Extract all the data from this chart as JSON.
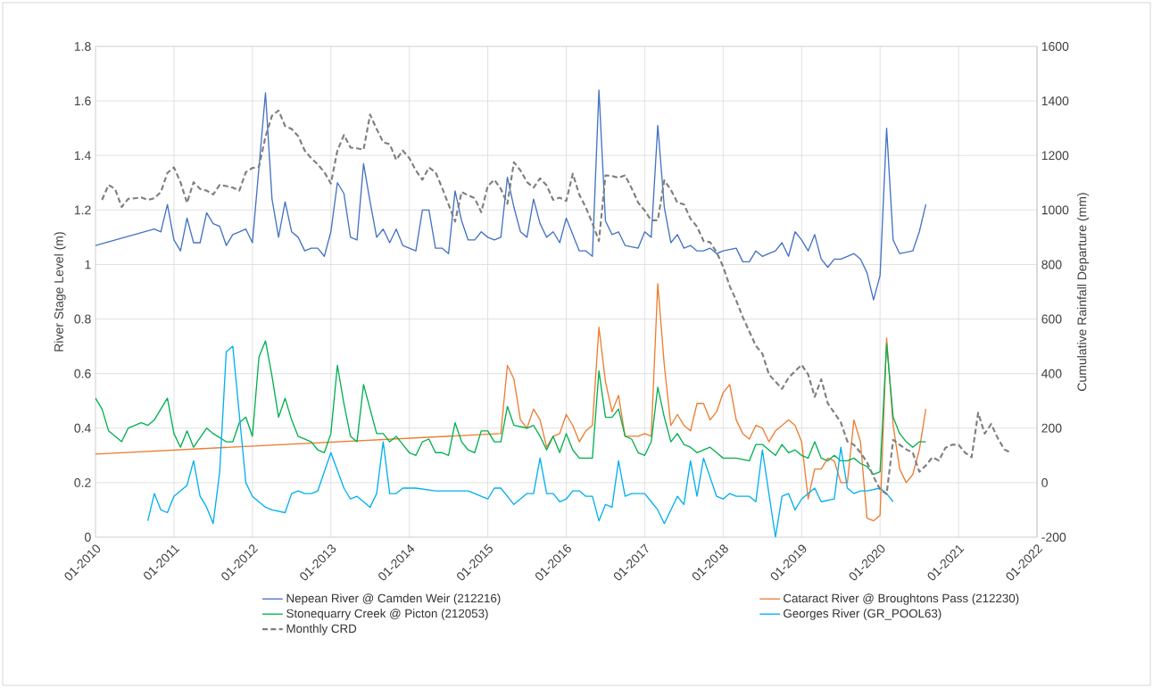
{
  "chart_data": {
    "type": "line",
    "ylabel": "River Stage Level (m)",
    "y2label": "Cumulative Rainfall Departure (mm)",
    "xlim": [
      "2010-01",
      "2022-01"
    ],
    "xticks": [
      {
        "value": "2010-01",
        "label": "01-2010"
      },
      {
        "value": "2011-01",
        "label": "01-2011"
      },
      {
        "value": "2012-01",
        "label": "01-2012"
      },
      {
        "value": "2013-01",
        "label": "01-2013"
      },
      {
        "value": "2014-01",
        "label": "01-2014"
      },
      {
        "value": "2015-01",
        "label": "01-2015"
      },
      {
        "value": "2016-01",
        "label": "01-2016"
      },
      {
        "value": "2017-01",
        "label": "01-2017"
      },
      {
        "value": "2018-01",
        "label": "01-2018"
      },
      {
        "value": "2019-01",
        "label": "01-2019"
      },
      {
        "value": "2020-01",
        "label": "01-2020"
      },
      {
        "value": "2021-01",
        "label": "01-2021"
      },
      {
        "value": "2022-01",
        "label": "01-2022"
      }
    ],
    "ylim": [
      0,
      1.8
    ],
    "yticks": [
      0,
      0.2,
      0.4,
      0.6,
      0.8,
      1,
      1.2,
      1.4,
      1.6,
      1.8
    ],
    "y2lim": [
      -200,
      1600
    ],
    "y2ticks": [
      -200,
      0,
      200,
      400,
      600,
      800,
      1000,
      1200,
      1400,
      1600
    ],
    "grid": true,
    "legend": "bottom",
    "series": [
      {
        "name": "Nepean River @ Camden Weir (212216)",
        "color": "#4472c4",
        "x": [
          "2010-01",
          "2010-10",
          "2010-11",
          "2010-12",
          "2011-01",
          "2011-02",
          "2011-03",
          "2011-04",
          "2011-05",
          "2011-06",
          "2011-07",
          "2011-08",
          "2011-09",
          "2011-10",
          "2011-11",
          "2011-12",
          "2012-01",
          "2012-03",
          "2012-04",
          "2012-05",
          "2012-06",
          "2012-07",
          "2012-08",
          "2012-09",
          "2012-10",
          "2012-11",
          "2012-12",
          "2013-01",
          "2013-02",
          "2013-03",
          "2013-04",
          "2013-05",
          "2013-06",
          "2013-07",
          "2013-08",
          "2013-09",
          "2013-10",
          "2013-11",
          "2013-12",
          "2014-01",
          "2014-02",
          "2014-03",
          "2014-04",
          "2014-05",
          "2014-06",
          "2014-07",
          "2014-08",
          "2014-09",
          "2014-10",
          "2014-11",
          "2014-12",
          "2015-01",
          "2015-02",
          "2015-03",
          "2015-04",
          "2015-05",
          "2015-06",
          "2015-07",
          "2015-08",
          "2015-09",
          "2015-10",
          "2015-11",
          "2015-12",
          "2016-01",
          "2016-03",
          "2016-04",
          "2016-05",
          "2016-06",
          "2016-07",
          "2016-08",
          "2016-09",
          "2016-10",
          "2016-12",
          "2017-01",
          "2017-02",
          "2017-03",
          "2017-04",
          "2017-05",
          "2017-06",
          "2017-07",
          "2017-08",
          "2017-09",
          "2017-10",
          "2017-11",
          "2017-12",
          "2018-01",
          "2018-03",
          "2018-04",
          "2018-05",
          "2018-06",
          "2018-07",
          "2018-08",
          "2018-09",
          "2018-10",
          "2018-11",
          "2018-12",
          "2019-01",
          "2019-02",
          "2019-03",
          "2019-04",
          "2019-05",
          "2019-06",
          "2019-07",
          "2019-08",
          "2019-09",
          "2019-10",
          "2019-11",
          "2019-12",
          "2020-01",
          "2020-02",
          "2020-03",
          "2020-04",
          "2020-06",
          "2020-07",
          "2020-08"
        ],
        "values": [
          1.07,
          1.13,
          1.12,
          1.22,
          1.09,
          1.05,
          1.17,
          1.08,
          1.08,
          1.19,
          1.15,
          1.14,
          1.07,
          1.11,
          1.12,
          1.13,
          1.08,
          1.63,
          1.24,
          1.1,
          1.23,
          1.12,
          1.1,
          1.05,
          1.06,
          1.06,
          1.03,
          1.12,
          1.3,
          1.26,
          1.1,
          1.09,
          1.37,
          1.23,
          1.1,
          1.13,
          1.08,
          1.13,
          1.07,
          1.06,
          1.05,
          1.2,
          1.2,
          1.06,
          1.06,
          1.04,
          1.27,
          1.16,
          1.09,
          1.09,
          1.12,
          1.1,
          1.09,
          1.1,
          1.32,
          1.21,
          1.12,
          1.1,
          1.24,
          1.15,
          1.1,
          1.12,
          1.08,
          1.17,
          1.05,
          1.05,
          1.03,
          1.64,
          1.16,
          1.11,
          1.12,
          1.07,
          1.06,
          1.12,
          1.1,
          1.51,
          1.21,
          1.08,
          1.11,
          1.06,
          1.07,
          1.05,
          1.05,
          1.06,
          1.04,
          1.05,
          1.06,
          1.01,
          1.01,
          1.05,
          1.03,
          1.04,
          1.05,
          1.08,
          1.03,
          1.12,
          1.09,
          1.05,
          1.11,
          1.02,
          0.99,
          1.02,
          1.02,
          1.03,
          1.04,
          1.02,
          0.97,
          0.87,
          0.96,
          1.5,
          1.09,
          1.04,
          1.05,
          1.12,
          1.22
        ]
      },
      {
        "name": "Cataract River @ Broughtons Pass (212230)",
        "color": "#ed7d31",
        "x": [
          "2010-01",
          "2015-03",
          "2015-04",
          "2015-05",
          "2015-06",
          "2015-07",
          "2015-08",
          "2015-09",
          "2015-10",
          "2015-11",
          "2015-12",
          "2016-01",
          "2016-02",
          "2016-03",
          "2016-04",
          "2016-05",
          "2016-06",
          "2016-07",
          "2016-08",
          "2016-09",
          "2016-10",
          "2016-11",
          "2016-12",
          "2017-01",
          "2017-02",
          "2017-03",
          "2017-04",
          "2017-05",
          "2017-06",
          "2017-07",
          "2017-08",
          "2017-09",
          "2017-10",
          "2017-11",
          "2017-12",
          "2018-01",
          "2018-02",
          "2018-03",
          "2018-04",
          "2018-05",
          "2018-06",
          "2018-07",
          "2018-08",
          "2018-09",
          "2018-10",
          "2018-11",
          "2018-12",
          "2019-01",
          "2019-02",
          "2019-03",
          "2019-04",
          "2019-05",
          "2019-06",
          "2019-07",
          "2019-08",
          "2019-09",
          "2019-10",
          "2019-11",
          "2019-12",
          "2020-01",
          "2020-02",
          "2020-03",
          "2020-04",
          "2020-05",
          "2020-06",
          "2020-07",
          "2020-08"
        ],
        "values": [
          0.305,
          0.38,
          0.63,
          0.58,
          0.43,
          0.4,
          0.47,
          0.43,
          0.33,
          0.37,
          0.38,
          0.45,
          0.41,
          0.35,
          0.39,
          0.41,
          0.77,
          0.57,
          0.46,
          0.52,
          0.37,
          0.37,
          0.37,
          0.38,
          0.37,
          0.93,
          0.63,
          0.41,
          0.45,
          0.41,
          0.39,
          0.49,
          0.49,
          0.43,
          0.46,
          0.53,
          0.56,
          0.43,
          0.38,
          0.36,
          0.41,
          0.4,
          0.35,
          0.39,
          0.41,
          0.43,
          0.41,
          0.35,
          0.14,
          0.25,
          0.25,
          0.29,
          0.28,
          0.2,
          0.2,
          0.43,
          0.35,
          0.07,
          0.06,
          0.08,
          0.73,
          0.41,
          0.25,
          0.2,
          0.23,
          0.32,
          0.47
        ]
      },
      {
        "name": "Stonequarry Creek @ Picton (212053)",
        "color": "#00b050",
        "x": [
          "2010-01",
          "2010-02",
          "2010-03",
          "2010-05",
          "2010-06",
          "2010-08",
          "2010-09",
          "2010-10",
          "2010-12",
          "2011-01",
          "2011-02",
          "2011-03",
          "2011-04",
          "2011-06",
          "2011-07",
          "2011-09",
          "2011-10",
          "2011-11",
          "2011-12",
          "2012-01",
          "2012-02",
          "2012-03",
          "2012-04",
          "2012-05",
          "2012-06",
          "2012-07",
          "2012-08",
          "2012-10",
          "2012-11",
          "2012-12",
          "2013-01",
          "2013-02",
          "2013-03",
          "2013-04",
          "2013-05",
          "2013-06",
          "2013-07",
          "2013-08",
          "2013-09",
          "2013-10",
          "2013-11",
          "2013-12",
          "2014-01",
          "2014-02",
          "2014-03",
          "2014-04",
          "2014-05",
          "2014-06",
          "2014-07",
          "2014-08",
          "2014-09",
          "2014-10",
          "2014-11",
          "2014-12",
          "2015-01",
          "2015-02",
          "2015-03",
          "2015-04",
          "2015-05",
          "2015-07",
          "2015-08",
          "2015-09",
          "2015-10",
          "2015-11",
          "2015-12",
          "2016-01",
          "2016-02",
          "2016-03",
          "2016-04",
          "2016-05",
          "2016-06",
          "2016-07",
          "2016-08",
          "2016-09",
          "2016-10",
          "2016-11",
          "2016-12",
          "2017-01",
          "2017-02",
          "2017-03",
          "2017-04",
          "2017-05",
          "2017-06",
          "2017-07",
          "2017-08",
          "2017-09",
          "2017-10",
          "2017-11",
          "2018-01",
          "2018-03",
          "2018-05",
          "2018-06",
          "2018-07",
          "2018-08",
          "2018-09",
          "2018-10",
          "2018-11",
          "2018-12",
          "2019-01",
          "2019-02",
          "2019-03",
          "2019-04",
          "2019-05",
          "2019-06",
          "2019-07",
          "2019-08",
          "2019-09",
          "2019-10",
          "2019-11",
          "2019-12",
          "2020-01",
          "2020-02",
          "2020-03",
          "2020-04",
          "2020-05",
          "2020-06",
          "2020-07",
          "2020-08"
        ],
        "values": [
          0.51,
          0.47,
          0.39,
          0.35,
          0.4,
          0.42,
          0.41,
          0.43,
          0.51,
          0.38,
          0.33,
          0.39,
          0.33,
          0.4,
          0.38,
          0.35,
          0.35,
          0.42,
          0.44,
          0.37,
          0.66,
          0.72,
          0.59,
          0.44,
          0.51,
          0.43,
          0.37,
          0.35,
          0.32,
          0.31,
          0.38,
          0.63,
          0.49,
          0.37,
          0.35,
          0.56,
          0.47,
          0.38,
          0.38,
          0.35,
          0.37,
          0.34,
          0.31,
          0.3,
          0.35,
          0.36,
          0.31,
          0.31,
          0.3,
          0.42,
          0.35,
          0.32,
          0.31,
          0.39,
          0.39,
          0.35,
          0.35,
          0.48,
          0.41,
          0.4,
          0.41,
          0.37,
          0.32,
          0.37,
          0.31,
          0.38,
          0.32,
          0.29,
          0.29,
          0.29,
          0.61,
          0.44,
          0.44,
          0.47,
          0.37,
          0.36,
          0.31,
          0.3,
          0.35,
          0.55,
          0.44,
          0.35,
          0.38,
          0.34,
          0.33,
          0.31,
          0.32,
          0.33,
          0.29,
          0.29,
          0.28,
          0.34,
          0.34,
          0.32,
          0.3,
          0.34,
          0.31,
          0.32,
          0.3,
          0.29,
          0.35,
          0.29,
          0.28,
          0.3,
          0.28,
          0.28,
          0.29,
          0.27,
          0.26,
          0.23,
          0.24,
          0.71,
          0.44,
          0.38,
          0.35,
          0.33,
          0.35,
          0.35
        ]
      },
      {
        "name": "Georges River (GR_POOL63)",
        "color": "#00b0f0",
        "x": [
          "2010-09",
          "2010-10",
          "2010-11",
          "2010-12",
          "2011-01",
          "2011-02",
          "2011-03",
          "2011-04",
          "2011-05",
          "2011-06",
          "2011-07",
          "2011-08",
          "2011-09",
          "2011-10",
          "2011-12",
          "2012-01",
          "2012-03",
          "2012-04",
          "2012-06",
          "2012-07",
          "2012-08",
          "2012-09",
          "2012-10",
          "2012-11",
          "2013-01",
          "2013-03",
          "2013-04",
          "2013-05",
          "2013-07",
          "2013-08",
          "2013-09",
          "2013-10",
          "2013-11",
          "2013-12",
          "2014-01",
          "2014-02",
          "2014-05",
          "2014-07",
          "2014-10",
          "2015-01",
          "2015-02",
          "2015-03",
          "2015-05",
          "2015-07",
          "2015-08",
          "2015-09",
          "2015-10",
          "2015-11",
          "2015-12",
          "2016-01",
          "2016-02",
          "2016-03",
          "2016-04",
          "2016-05",
          "2016-06",
          "2016-07",
          "2016-08",
          "2016-09",
          "2016-10",
          "2016-11",
          "2017-01",
          "2017-02",
          "2017-03",
          "2017-04",
          "2017-06",
          "2017-07",
          "2017-08",
          "2017-09",
          "2017-10",
          "2017-12",
          "2018-01",
          "2018-02",
          "2018-03",
          "2018-05",
          "2018-06",
          "2018-07",
          "2018-09",
          "2018-10",
          "2018-11",
          "2018-12",
          "2019-01",
          "2019-02",
          "2019-03",
          "2019-04",
          "2019-06",
          "2019-07",
          "2019-08",
          "2019-09",
          "2019-10",
          "2019-11",
          "2020-01",
          "2020-02",
          "2020-03"
        ],
        "values": [
          0.06,
          0.16,
          0.1,
          0.09,
          0.15,
          0.17,
          0.19,
          0.28,
          0.15,
          0.11,
          0.05,
          0.24,
          0.68,
          0.7,
          0.2,
          0.15,
          0.11,
          0.1,
          0.09,
          0.16,
          0.17,
          0.16,
          0.16,
          0.17,
          0.31,
          0.18,
          0.14,
          0.15,
          0.11,
          0.16,
          0.35,
          0.16,
          0.16,
          0.18,
          0.18,
          0.18,
          0.17,
          0.17,
          0.17,
          0.14,
          0.18,
          0.18,
          0.12,
          0.16,
          0.16,
          0.29,
          0.16,
          0.16,
          0.13,
          0.14,
          0.17,
          0.17,
          0.15,
          0.15,
          0.06,
          0.12,
          0.11,
          0.28,
          0.15,
          0.16,
          0.16,
          0.13,
          0.1,
          0.05,
          0.15,
          0.12,
          0.28,
          0.15,
          0.29,
          0.15,
          0.14,
          0.16,
          0.15,
          0.15,
          0.13,
          0.32,
          0.0,
          0.15,
          0.16,
          0.1,
          0.14,
          0.16,
          0.18,
          0.13,
          0.14,
          0.33,
          0.18,
          0.16,
          0.17,
          0.17,
          0.18,
          0.16,
          0.13
        ]
      },
      {
        "name": "Monthly CRD",
        "color": "#7f7f7f",
        "axis": "y2",
        "line_style": "dashed",
        "x": [
          "2010-02",
          "2010-03",
          "2010-04",
          "2010-05",
          "2010-06",
          "2010-07",
          "2010-08",
          "2010-09",
          "2010-10",
          "2010-11",
          "2010-12",
          "2011-01",
          "2011-02",
          "2011-03",
          "2011-04",
          "2011-05",
          "2011-06",
          "2011-07",
          "2011-08",
          "2011-09",
          "2011-10",
          "2011-11",
          "2011-12",
          "2012-01",
          "2012-02",
          "2012-03",
          "2012-04",
          "2012-05",
          "2012-06",
          "2012-07",
          "2012-08",
          "2012-09",
          "2012-10",
          "2012-11",
          "2012-12",
          "2013-01",
          "2013-02",
          "2013-03",
          "2013-04",
          "2013-05",
          "2013-06",
          "2013-07",
          "2013-08",
          "2013-09",
          "2013-10",
          "2013-11",
          "2013-12",
          "2014-01",
          "2014-02",
          "2014-03",
          "2014-04",
          "2014-05",
          "2014-06",
          "2014-07",
          "2014-08",
          "2014-09",
          "2014-10",
          "2014-11",
          "2014-12",
          "2015-01",
          "2015-02",
          "2015-03",
          "2015-04",
          "2015-05",
          "2015-06",
          "2015-07",
          "2015-08",
          "2015-09",
          "2015-10",
          "2015-11",
          "2015-12",
          "2016-01",
          "2016-02",
          "2016-03",
          "2016-04",
          "2016-05",
          "2016-06",
          "2016-07",
          "2016-08",
          "2016-09",
          "2016-10",
          "2016-11",
          "2016-12",
          "2017-01",
          "2017-02",
          "2017-03",
          "2017-04",
          "2017-05",
          "2017-06",
          "2017-07",
          "2017-08",
          "2017-09",
          "2017-10",
          "2017-11",
          "2017-12",
          "2018-01",
          "2018-02",
          "2018-03",
          "2018-04",
          "2018-06",
          "2018-07",
          "2018-08",
          "2018-10",
          "2018-11",
          "2019-01",
          "2019-02",
          "2019-03",
          "2019-04",
          "2019-05",
          "2019-07",
          "2019-08",
          "2019-09",
          "2019-10",
          "2019-11",
          "2019-12",
          "2020-01",
          "2020-02",
          "2020-03",
          "2020-04",
          "2020-05",
          "2020-06",
          "2020-07",
          "2020-08",
          "2020-09",
          "2020-10",
          "2020-11",
          "2020-12",
          "2021-01",
          "2021-02",
          "2021-03",
          "2021-04",
          "2021-05",
          "2021-06",
          "2021-07",
          "2021-08",
          "2021-09"
        ],
        "values": [
          1037,
          1092,
          1077,
          1011,
          1041,
          1043,
          1046,
          1037,
          1043,
          1066,
          1136,
          1156,
          1102,
          1026,
          1102,
          1077,
          1071,
          1057,
          1092,
          1088,
          1082,
          1071,
          1139,
          1154,
          1158,
          1269,
          1346,
          1365,
          1308,
          1297,
          1271,
          1218,
          1190,
          1167,
          1139,
          1097,
          1218,
          1275,
          1229,
          1226,
          1221,
          1350,
          1297,
          1249,
          1241,
          1184,
          1218,
          1190,
          1145,
          1111,
          1156,
          1139,
          1082,
          1020,
          958,
          1066,
          1054,
          1043,
          992,
          1088,
          1111,
          1077,
          1023,
          1175,
          1145,
          1102,
          1082,
          1116,
          1090,
          1037,
          1045,
          1033,
          1133,
          1056,
          1009,
          951,
          886,
          1127,
          1125,
          1118,
          1127,
          1080,
          1027,
          998,
          962,
          962,
          1109,
          1074,
          1027,
          1021,
          968,
          939,
          886,
          882,
          845,
          792,
          721,
          668,
          607,
          502,
          473,
          397,
          344,
          385,
          432,
          397,
          315,
          379,
          291,
          221,
          151,
          139,
          110,
          75,
          22,
          -25,
          -42,
          157,
          139,
          122,
          110,
          40,
          63,
          93,
          81,
          128,
          139,
          139,
          110,
          93,
          256,
          180,
          215,
          163,
          122,
          110
        ]
      }
    ]
  }
}
